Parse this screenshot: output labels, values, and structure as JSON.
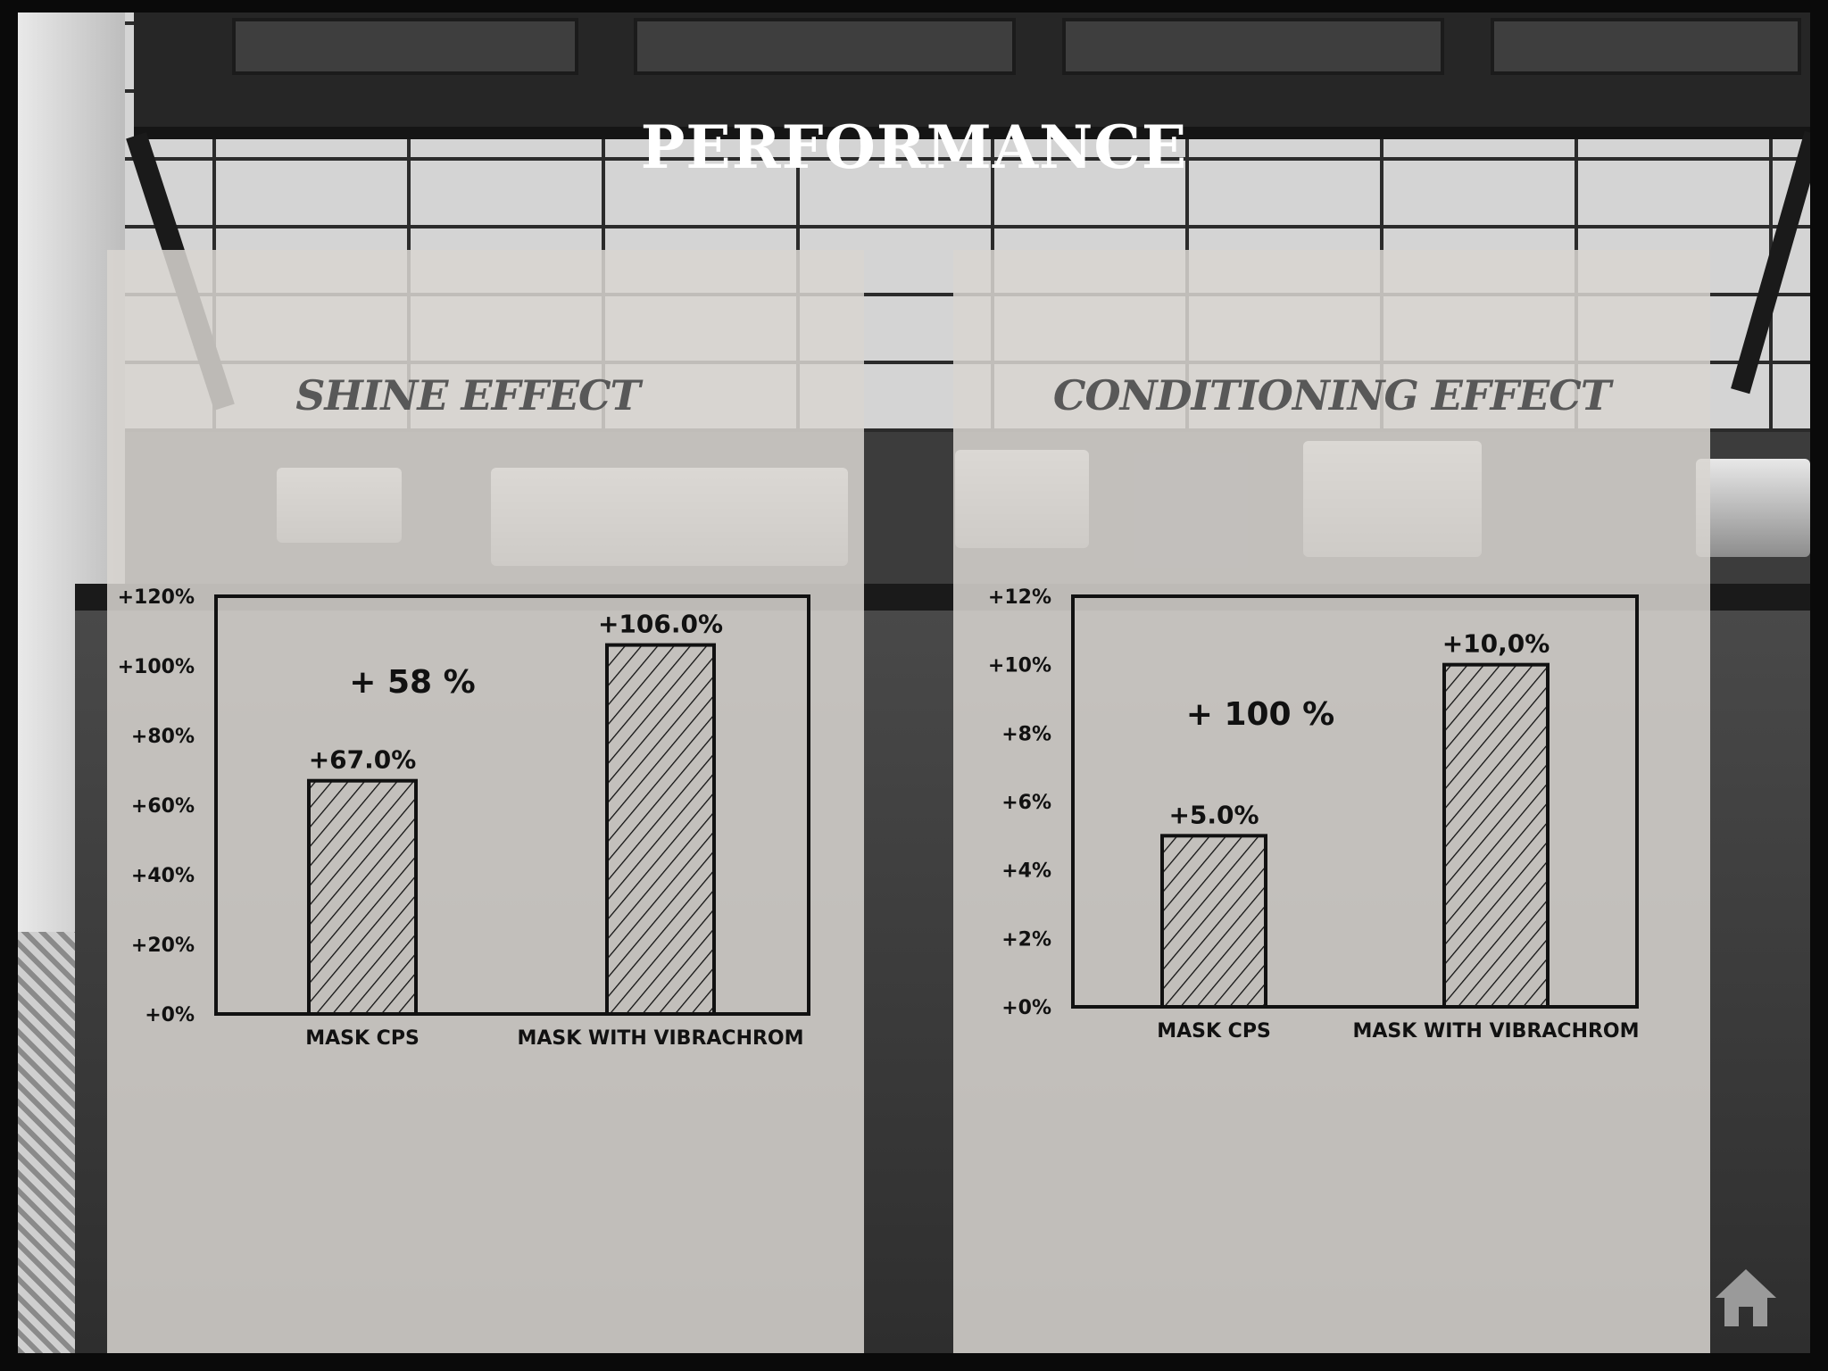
{
  "title": "PERFORMANCE",
  "home_icon": "home-icon",
  "charts": {
    "shine": {
      "title": "SHINE EFFECT",
      "increase_label": "+ 58 %"
    },
    "conditioning": {
      "title": "CONDITIONING EFFECT",
      "increase_label": "+ 100 %"
    }
  },
  "chart_data": [
    {
      "type": "bar",
      "title": "SHINE EFFECT",
      "categories": [
        "MASK CPS",
        "MASK with Vibrachrom"
      ],
      "values": [
        67.0,
        106.0
      ],
      "value_labels": [
        "+67.0%",
        "+106.0%"
      ],
      "ylim": [
        0,
        120
      ],
      "yticks": [
        "+0%",
        "+20%",
        "+40%",
        "+60%",
        "+80%",
        "+100%",
        "+120%"
      ],
      "annotation": "+ 58 %",
      "grid": false,
      "bar_fill": "diagonal hatch"
    },
    {
      "type": "bar",
      "title": "CONDITIONING EFFECT",
      "categories": [
        "MASK CPS",
        "MASK with Vibrachrom"
      ],
      "values": [
        5.0,
        10.0
      ],
      "value_labels": [
        "+5.0%",
        "+10,0%"
      ],
      "ylim": [
        0,
        12
      ],
      "yticks": [
        "+0%",
        "+2%",
        "+4%",
        "+6%",
        "+8%",
        "+10%",
        "+12%"
      ],
      "annotation": "+ 100 %",
      "grid": false,
      "bar_fill": "diagonal hatch"
    }
  ]
}
